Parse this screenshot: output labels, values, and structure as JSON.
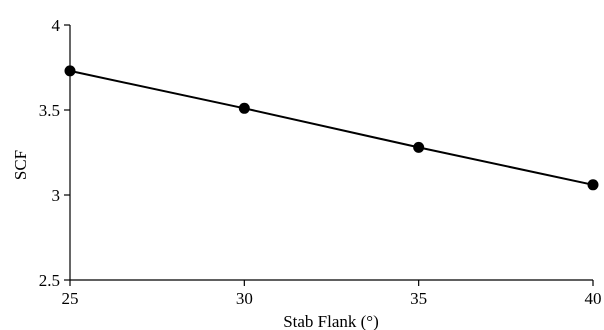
{
  "chart_data": {
    "type": "line",
    "title": "",
    "xlabel": "Stab Flank (°)",
    "ylabel": "SCF",
    "x": [
      25,
      30,
      35,
      40
    ],
    "series": [
      {
        "values": [
          3.73,
          3.51,
          3.28,
          3.06
        ]
      }
    ],
    "xlim": [
      25,
      40
    ],
    "ylim": [
      2.5,
      4
    ],
    "xticks": [
      25,
      30,
      35,
      40
    ],
    "yticks": [
      2.5,
      3,
      3.5,
      4
    ],
    "xtick_labels": [
      "25",
      "30",
      "35",
      "40"
    ],
    "ytick_labels": [
      "2.5",
      "3",
      "3.5",
      "4"
    ],
    "grid": false,
    "legend": "none",
    "colors": {
      "line": "#000000",
      "marker": "#000000"
    }
  }
}
